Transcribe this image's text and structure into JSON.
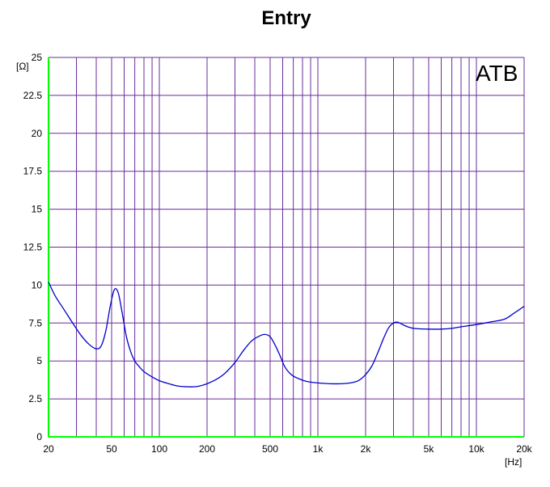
{
  "chart_data": {
    "type": "line",
    "title": "Entry",
    "annotation": "ATB",
    "xlabel": "[Hz]",
    "ylabel": "[Ω]",
    "x_scale": "log",
    "xlim": [
      20,
      20000
    ],
    "ylim": [
      0,
      25
    ],
    "grid": true,
    "x_ticks": [
      {
        "value": 20,
        "label": "20"
      },
      {
        "value": 50,
        "label": "50"
      },
      {
        "value": 100,
        "label": "100"
      },
      {
        "value": 200,
        "label": "200"
      },
      {
        "value": 500,
        "label": "500"
      },
      {
        "value": 1000,
        "label": "1k"
      },
      {
        "value": 2000,
        "label": "2k"
      },
      {
        "value": 5000,
        "label": "5k"
      },
      {
        "value": 10000,
        "label": "10k"
      },
      {
        "value": 20000,
        "label": "20k"
      }
    ],
    "x_minor": [
      30,
      40,
      60,
      70,
      80,
      90,
      300,
      400,
      600,
      700,
      800,
      900,
      3000,
      4000,
      6000,
      7000,
      8000,
      9000
    ],
    "y_ticks": [
      {
        "value": 0,
        "label": "0"
      },
      {
        "value": 2.5,
        "label": "2.5"
      },
      {
        "value": 5,
        "label": "5"
      },
      {
        "value": 7.5,
        "label": "7.5"
      },
      {
        "value": 10,
        "label": "10"
      },
      {
        "value": 12.5,
        "label": "12.5"
      },
      {
        "value": 15,
        "label": "15"
      },
      {
        "value": 17.5,
        "label": "17.5"
      },
      {
        "value": 20,
        "label": "20"
      },
      {
        "value": 22.5,
        "label": "22.5"
      },
      {
        "value": 25,
        "label": "25"
      }
    ],
    "colors": {
      "grid": "#6a2c9a",
      "axis": "#00ff00",
      "line": "#0000cc"
    },
    "series": [
      {
        "x": [
          20,
          22,
          25,
          28,
          32,
          36,
          40,
          43,
          46,
          49,
          52,
          55,
          58,
          62,
          66,
          70,
          75,
          80,
          90,
          100,
          115,
          130,
          150,
          165,
          180,
          200,
          230,
          260,
          300,
          340,
          380,
          420,
          460,
          500,
          540,
          580,
          620,
          680,
          750,
          850,
          1000,
          1200,
          1400,
          1600,
          1800,
          2000,
          2200,
          2400,
          2600,
          2800,
          3000,
          3200,
          3500,
          4000,
          5000,
          6000,
          7000,
          8000,
          10000,
          12000,
          15000,
          17000,
          20000
        ],
        "y": [
          10.2,
          9.3,
          8.4,
          7.6,
          6.7,
          6.1,
          5.8,
          6.0,
          7.0,
          8.6,
          9.7,
          9.5,
          8.3,
          6.6,
          5.6,
          5.0,
          4.6,
          4.3,
          3.95,
          3.7,
          3.5,
          3.35,
          3.3,
          3.3,
          3.35,
          3.5,
          3.8,
          4.2,
          4.9,
          5.7,
          6.3,
          6.6,
          6.75,
          6.6,
          6.0,
          5.3,
          4.6,
          4.1,
          3.85,
          3.65,
          3.55,
          3.5,
          3.5,
          3.55,
          3.7,
          4.1,
          4.7,
          5.6,
          6.5,
          7.2,
          7.5,
          7.55,
          7.35,
          7.15,
          7.1,
          7.1,
          7.15,
          7.25,
          7.4,
          7.55,
          7.75,
          8.1,
          8.6
        ]
      }
    ]
  }
}
